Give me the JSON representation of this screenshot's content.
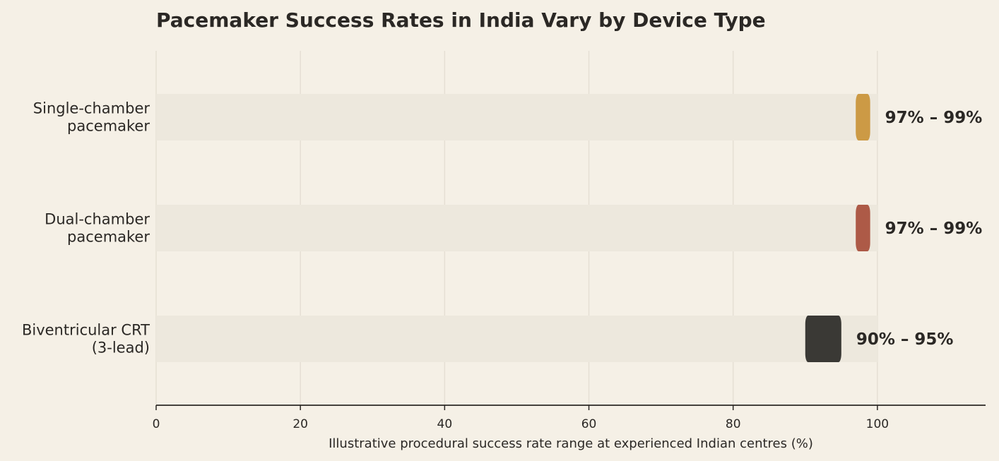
{
  "chart_data": {
    "type": "bar",
    "title": "Pacemaker Success Rates in India Vary by Device Type",
    "xlabel": "Illustrative procedural success rate range at experienced Indian centres (%)",
    "ylabel": "",
    "xlim": [
      0,
      115
    ],
    "xticks": [
      "0",
      "20",
      "40",
      "60",
      "80",
      "100"
    ],
    "grid": true,
    "orientation": "horizontal",
    "categories": [
      {
        "lines": [
          "Single-chamber",
          "pacemaker"
        ],
        "low": 97,
        "high": 99,
        "label": "97% – 99%",
        "color": "#cc9a45"
      },
      {
        "lines": [
          "Dual-chamber",
          "pacemaker"
        ],
        "low": 97,
        "high": 99,
        "label": "97% – 99%",
        "color": "#ad5a47"
      },
      {
        "lines": [
          "Biventricular CRT",
          "(3-lead)"
        ],
        "low": 90,
        "high": 95,
        "label": "90% – 95%",
        "color": "#3a3935"
      }
    ],
    "track_max": 100,
    "colors": {
      "background": "#f5f0e6",
      "track": "#ede8dd",
      "grid": "#e5dfd4",
      "axis": "#2b2825",
      "text": "#2b2825"
    }
  }
}
